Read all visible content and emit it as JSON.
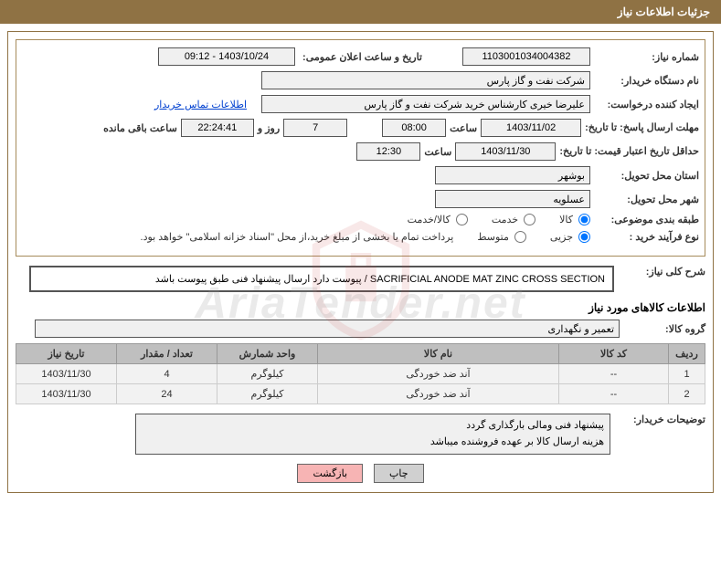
{
  "title_bar": "جزئیات اطلاعات نیاز",
  "labels": {
    "need_number": "شماره نیاز:",
    "announce_datetime": "تاریخ و ساعت اعلان عمومی:",
    "buyer_org": "نام دستگاه خریدار:",
    "requester": "ایجاد کننده درخواست:",
    "contact_link": "اطلاعات تماس خریدار",
    "response_deadline": "مهلت ارسال پاسخ: تا تاریخ:",
    "hour": "ساعت",
    "days_and": "روز و",
    "time_remaining": "ساعت باقی مانده",
    "price_validity": "حداقل تاریخ اعتبار قیمت: تا تاریخ:",
    "delivery_province": "استان محل تحویل:",
    "delivery_city": "شهر محل تحویل:",
    "category": "طبقه بندی موضوعی:",
    "purchase_type": "نوع فرآیند خرید :",
    "payment_note": "پرداخت تمام یا بخشی از مبلغ خرید،از محل \"اسناد خزانه اسلامی\" خواهد بود.",
    "overall_desc": "شرح کلی نیاز:",
    "items_info_heading": "اطلاعات کالاهای مورد نیاز",
    "goods_group": "گروه کالا:",
    "buyer_notes": "توضیحات خریدار:"
  },
  "values": {
    "need_number": "1103001034004382",
    "announce_datetime": "09:12 - 1403/10/24",
    "buyer_org": "شرکت نفت و گاز پارس",
    "requester": "علیرضا  خیری کارشناس خرید  شرکت نفت و گاز پارس",
    "response_date": "1403/11/02",
    "response_hour": "08:00",
    "days_remaining": "7",
    "countdown": "22:24:41",
    "price_valid_date": "1403/11/30",
    "price_valid_hour": "12:30",
    "province": "بوشهر",
    "city": "عسلویه",
    "overall_desc": "SACRIFICIAL ANODE MAT ZINC CROSS SECTION / پیوست دارد ارسال پیشنهاد فنی طبق پیوست باشد",
    "goods_group": "تعمیر و نگهداری",
    "buyer_notes_line1": "پیشنهاد فنی ومالی بارگذاری گردد",
    "buyer_notes_line2": "هزینه ارسال کالا بر عهده فروشنده میباشد"
  },
  "radios": {
    "category": {
      "goods": "کالا",
      "service": "خدمت",
      "goods_service": "کالا/خدمت"
    },
    "purchase": {
      "small": "جزیی",
      "medium": "متوسط"
    }
  },
  "table": {
    "headers": {
      "row": "ردیف",
      "code": "کد کالا",
      "name": "نام کالا",
      "unit": "واحد شمارش",
      "qty": "تعداد / مقدار",
      "date": "تاریخ نیاز"
    },
    "rows": [
      {
        "row": "1",
        "code": "--",
        "name": "آند ضد خوردگی",
        "unit": "کیلوگرم",
        "qty": "4",
        "date": "1403/11/30"
      },
      {
        "row": "2",
        "code": "--",
        "name": "آند ضد خوردگی",
        "unit": "کیلوگرم",
        "qty": "24",
        "date": "1403/11/30"
      }
    ]
  },
  "buttons": {
    "print": "چاپ",
    "back": "بازگشت"
  },
  "watermark_text": "AriaTender.net",
  "colors": {
    "header_bg": "#8f7244",
    "border": "#a68b5b"
  },
  "col_widths": {
    "row": "40px",
    "code": "120px",
    "name": "auto",
    "unit": "110px",
    "qty": "110px",
    "date": "110px"
  }
}
